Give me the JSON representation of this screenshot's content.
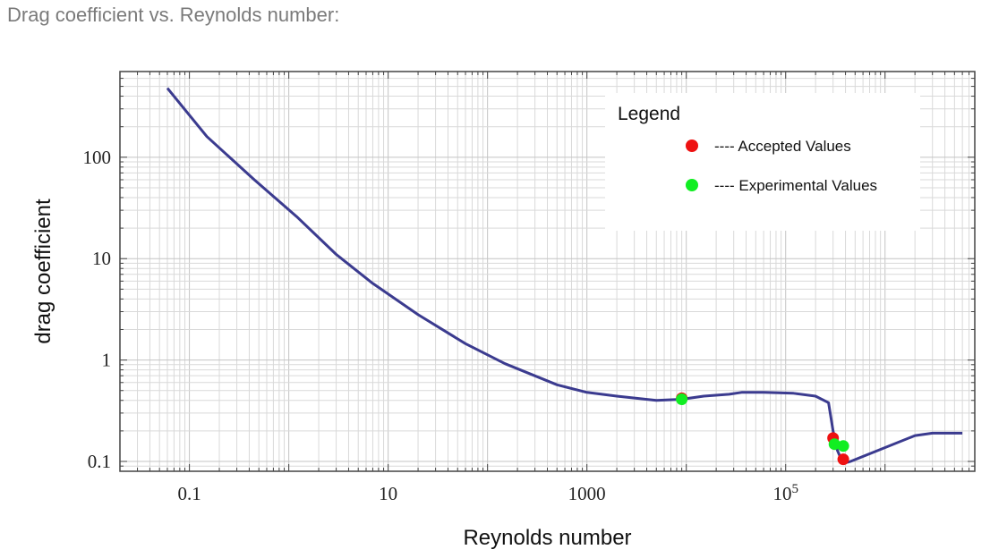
{
  "page": {
    "heading": "Drag coefficient vs. Reynolds number:"
  },
  "chart_data": {
    "type": "line",
    "title": "",
    "xlabel": "Reynolds number",
    "ylabel": "drag coefficient",
    "xscale": "log",
    "yscale": "log",
    "xlim": [
      0.02,
      8000000
    ],
    "ylim": [
      0.08,
      700
    ],
    "grid": true,
    "x_ticks": [
      {
        "value": 0.1,
        "label": "0.1"
      },
      {
        "value": 10,
        "label": "10"
      },
      {
        "value": 1000,
        "label": "1000"
      },
      {
        "value": 100000,
        "label": "10",
        "sup": "5"
      }
    ],
    "y_ticks": [
      {
        "value": 0.1,
        "label": "0.1"
      },
      {
        "value": 1,
        "label": "1"
      },
      {
        "value": 10,
        "label": "10"
      },
      {
        "value": 100,
        "label": "100"
      }
    ],
    "series": [
      {
        "color": "#3b3b8f",
        "x": [
          0.06,
          0.15,
          0.45,
          1.2,
          3,
          7,
          20,
          60,
          150,
          500,
          1000,
          2000,
          5000,
          9000,
          15000,
          27000,
          36000,
          60000,
          120000,
          200000,
          270000,
          300000,
          330000,
          370000,
          420000,
          450000,
          2000000,
          3000000,
          6000000
        ],
        "y": [
          480,
          160,
          60,
          26,
          11,
          5.7,
          2.8,
          1.45,
          0.92,
          0.57,
          0.48,
          0.44,
          0.4,
          0.41,
          0.44,
          0.46,
          0.48,
          0.48,
          0.47,
          0.44,
          0.38,
          0.2,
          0.13,
          0.1,
          0.098,
          0.1,
          0.18,
          0.19,
          0.19
        ]
      }
    ],
    "points": [
      {
        "name": "Accepted Values",
        "color": "#ee1111",
        "x": [
          9000,
          300000,
          380000
        ],
        "y": [
          0.42,
          0.17,
          0.105
        ]
      },
      {
        "name": "Experimental Values",
        "color": "#11ee22",
        "x": [
          9000,
          310000,
          380000
        ],
        "y": [
          0.41,
          0.148,
          0.142
        ]
      }
    ],
    "legend": {
      "title": "Legend",
      "placement": "top-right",
      "items": [
        {
          "marker_color": "#ee1111",
          "label": "----  Accepted Values"
        },
        {
          "marker_color": "#11ee22",
          "label": "----  Experimental Values"
        }
      ]
    }
  }
}
